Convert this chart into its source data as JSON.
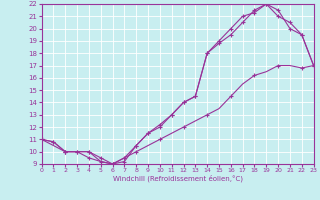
{
  "xlabel": "Windchill (Refroidissement éolien,°C)",
  "xlim": [
    0,
    23
  ],
  "ylim": [
    9,
    22
  ],
  "yticks": [
    9,
    10,
    11,
    12,
    13,
    14,
    15,
    16,
    17,
    18,
    19,
    20,
    21,
    22
  ],
  "xticks": [
    0,
    1,
    2,
    3,
    4,
    5,
    6,
    7,
    8,
    9,
    10,
    11,
    12,
    13,
    14,
    15,
    16,
    17,
    18,
    19,
    20,
    21,
    22,
    23
  ],
  "background_color": "#c8eef0",
  "grid_color": "#ffffff",
  "line_color": "#993399",
  "line1_x": [
    0,
    1,
    2,
    3,
    4,
    5,
    6,
    7,
    8,
    9,
    10,
    11,
    12,
    13,
    14,
    15,
    16,
    17,
    18,
    19,
    20,
    21,
    22,
    23
  ],
  "line1_y": [
    11,
    10.8,
    10,
    10,
    10,
    9.2,
    9,
    9.2,
    10.5,
    11.5,
    12.2,
    13,
    14,
    14.5,
    18,
    18.8,
    19.5,
    20.5,
    21.5,
    22,
    21.5,
    20,
    19.5,
    17
  ],
  "line2_x": [
    0,
    1,
    2,
    3,
    4,
    5,
    6,
    7,
    8,
    9,
    10,
    11,
    12,
    13,
    14,
    15,
    16,
    17,
    18,
    19,
    20,
    21,
    22,
    23
  ],
  "line2_y": [
    11,
    10.8,
    10,
    10,
    10,
    9.5,
    9,
    9.5,
    10.5,
    11.5,
    12,
    13,
    14,
    14.5,
    18,
    19,
    20,
    21,
    21.3,
    22,
    21,
    20.5,
    19.5,
    17
  ],
  "line3_x": [
    0,
    1,
    2,
    3,
    4,
    5,
    6,
    7,
    8,
    9,
    10,
    11,
    12,
    13,
    14,
    15,
    16,
    17,
    18,
    19,
    20,
    21,
    22,
    23
  ],
  "line3_y": [
    11,
    10.5,
    10,
    10,
    9.5,
    9.2,
    9,
    9.5,
    10,
    10.5,
    11,
    11.5,
    12,
    12.5,
    13,
    13.5,
    14.5,
    15.5,
    16.2,
    16.5,
    17,
    17,
    16.8,
    17
  ]
}
